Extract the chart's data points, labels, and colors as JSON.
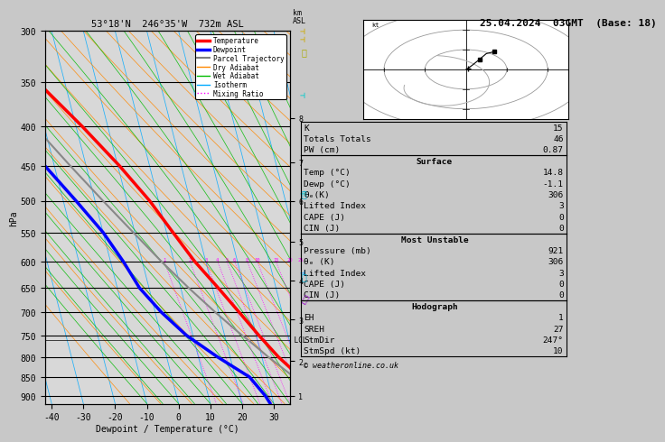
{
  "title_left": "53°18'N  246°35'W  732m ASL",
  "title_right": "25.04.2024  03GMT  (Base: 18)",
  "xlabel": "Dewpoint / Temperature (°C)",
  "ylabel_left": "hPa",
  "xlim": [
    -42,
    35
  ],
  "pressure_ticks": [
    300,
    350,
    400,
    450,
    500,
    550,
    600,
    650,
    700,
    750,
    800,
    850,
    900
  ],
  "temp_ticks": [
    -40,
    -30,
    -20,
    -10,
    0,
    10,
    20,
    30
  ],
  "km_ticks": [
    1,
    2,
    3,
    4,
    5,
    6,
    7,
    8
  ],
  "km_pressures": [
    900,
    810,
    715,
    635,
    565,
    500,
    445,
    390
  ],
  "bg_color": "#c8c8c8",
  "plot_bg": "#d8d8d8",
  "legend_entries": [
    "Temperature",
    "Dewpoint",
    "Parcel Trajectory",
    "Dry Adiabat",
    "Wet Adiabat",
    "Isotherm",
    "Mixing Ratio"
  ],
  "legend_colors": [
    "#ff0000",
    "#0000ff",
    "#808080",
    "#ff8800",
    "#00bb00",
    "#00aaff",
    "#ff00ff"
  ],
  "legend_styles": [
    "solid",
    "solid",
    "solid",
    "solid",
    "solid",
    "solid",
    "dotted"
  ],
  "legend_widths": [
    2.5,
    2.5,
    1.5,
    1.0,
    1.0,
    1.0,
    1.0
  ],
  "temp_profile_p": [
    921,
    900,
    850,
    800,
    750,
    700,
    650,
    600,
    550,
    500,
    450,
    400,
    350,
    300
  ],
  "temp_profile_t": [
    14.8,
    13.5,
    10.5,
    5.2,
    0.8,
    -3.5,
    -8.2,
    -13.5,
    -18.0,
    -22.8,
    -29.5,
    -38.0,
    -48.5,
    -56.0
  ],
  "dewp_profile_p": [
    921,
    900,
    850,
    800,
    750,
    700,
    650,
    600,
    550,
    500,
    450,
    400,
    350,
    300
  ],
  "dewp_profile_t": [
    -1.1,
    -2.0,
    -5.5,
    -14.0,
    -22.0,
    -28.0,
    -33.0,
    -36.0,
    -40.0,
    -46.0,
    -53.0,
    -60.0,
    -66.0,
    -72.0
  ],
  "parcel_profile_p": [
    921,
    900,
    850,
    800,
    760,
    750,
    700,
    650,
    600,
    550,
    500,
    450,
    400,
    350,
    300
  ],
  "parcel_profile_t": [
    14.8,
    13.5,
    8.5,
    2.0,
    -3.0,
    -4.5,
    -11.0,
    -17.5,
    -24.0,
    -30.5,
    -37.5,
    -45.0,
    -53.0,
    -61.5,
    -70.0
  ],
  "lcl_pressure": 760,
  "skew": 30,
  "mixing_ratios": [
    1,
    2,
    3,
    4,
    5,
    6,
    8,
    10,
    15,
    20,
    25
  ],
  "stats": {
    "K": 15,
    "Totals Totals": 46,
    "PW (cm)": 0.87,
    "Surface": {
      "Temp (°C)": 14.8,
      "Dewp (°C)": -1.1,
      "theta_e_K": 306,
      "Lifted Index": 3,
      "CAPE (J)": 0,
      "CIN (J)": 0
    },
    "Most Unstable": {
      "Pressure (mb)": 921,
      "theta_e_K": 306,
      "Lifted Index": 3,
      "CAPE (J)": 0,
      "CIN (J)": 0
    },
    "Hodograph": {
      "EH": 1,
      "SREH": 27,
      "StmDir": "247°",
      "StmSpd (kt)": 10
    }
  },
  "copyright": "© weatheronline.co.uk"
}
